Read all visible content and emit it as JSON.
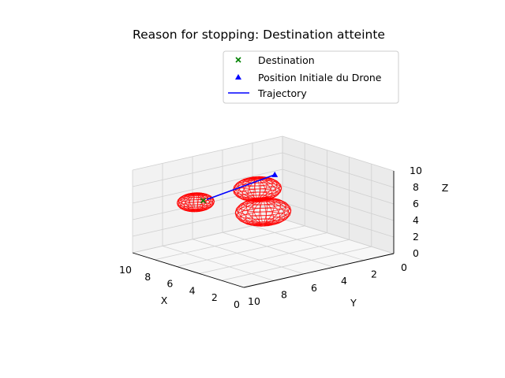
{
  "chart_data": {
    "type": "scatter3d",
    "title": "Reason for stopping: Destination atteinte",
    "xlabel": "X",
    "ylabel": "Y",
    "zlabel": "Z",
    "xlim": [
      0,
      10
    ],
    "ylim": [
      0,
      10
    ],
    "zlim": [
      0,
      10
    ],
    "x_ticks": [
      0,
      2,
      4,
      6,
      8,
      10
    ],
    "y_ticks": [
      0,
      2,
      4,
      6,
      8,
      10
    ],
    "z_ticks": [
      0,
      2,
      4,
      6,
      8,
      10
    ],
    "grid": true,
    "legend_position": "upper-right",
    "series": [
      {
        "name": "Destination",
        "marker": "x",
        "color": "#008000",
        "points": [
          [
            5.0,
            9.0,
            8.0
          ]
        ]
      },
      {
        "name": "Position Initiale du Drone",
        "marker": "^",
        "color": "#0000ff",
        "points": [
          [
            8.0,
            2.0,
            7.0
          ]
        ]
      },
      {
        "name": "Trajectory",
        "marker": "line",
        "color": "#0000ff",
        "points": [
          [
            5.2,
            8.6,
            7.9
          ],
          [
            8.0,
            2.0,
            7.0
          ]
        ]
      }
    ],
    "obstacles": {
      "type": "wireframe-sphere",
      "color": "#ff0000",
      "items": [
        {
          "center": [
            5.0,
            5.0,
            5.0
          ],
          "radius": 1.5
        },
        {
          "center": [
            3.5,
            6.5,
            9.0
          ],
          "radius": 1.3
        },
        {
          "center": [
            5.0,
            9.5,
            8.0
          ],
          "radius": 1.0
        }
      ]
    }
  }
}
